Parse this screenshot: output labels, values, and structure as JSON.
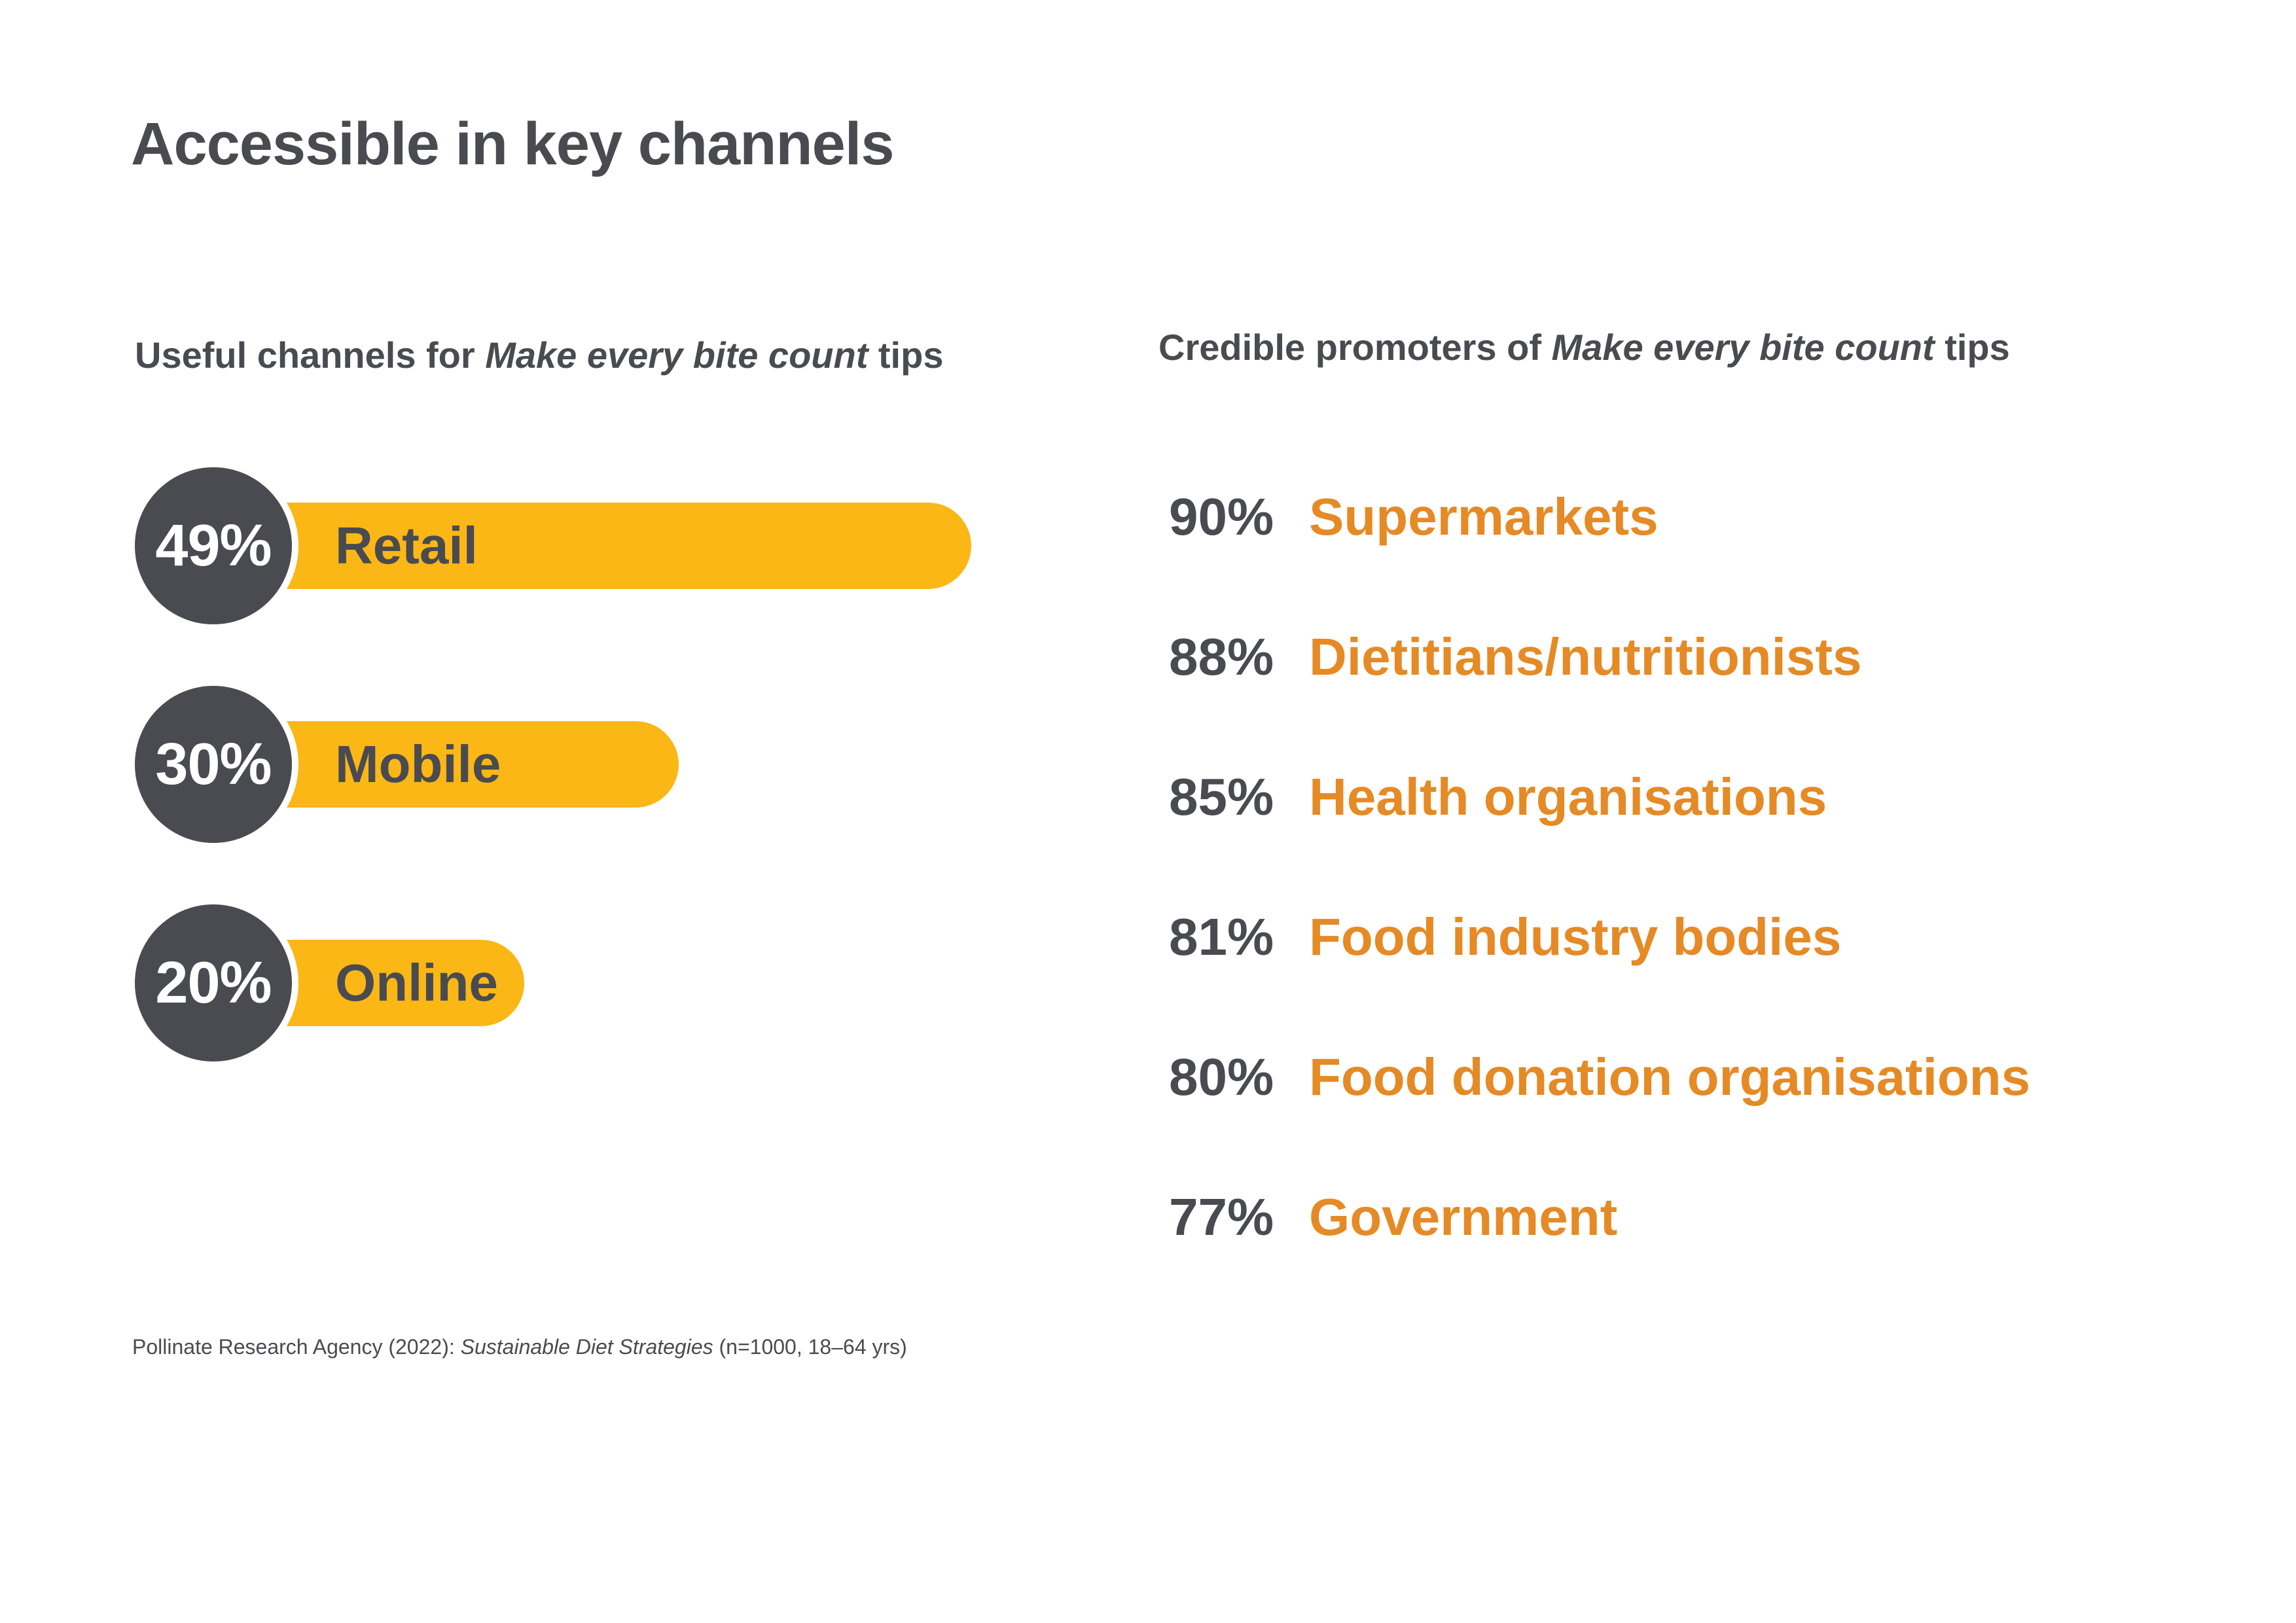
{
  "title": "Accessible in key channels",
  "left_heading": {
    "before": "Useful channels for ",
    "italic": "Make every bite count",
    "after": " tips"
  },
  "right_heading": {
    "before": "Credible promoters of ",
    "italic": "Make every bite count",
    "after": " tips"
  },
  "colors": {
    "bar": "#fbb716",
    "bubble": "#4a4b50",
    "promoter_name": "#e58a25",
    "text": "#4a4b50"
  },
  "chart_data": [
    {
      "type": "bar",
      "orientation": "horizontal",
      "categories": [
        "Retail",
        "Mobile",
        "Online"
      ],
      "values": [
        49,
        30,
        20
      ],
      "value_labels": [
        "49%",
        "30%",
        "20%"
      ],
      "unit": "%"
    },
    {
      "type": "table",
      "categories": [
        "Supermarkets",
        "Dietitians/nutritionists",
        "Health organisations",
        "Food industry bodies",
        "Food donation organisations",
        "Government"
      ],
      "values": [
        90,
        88,
        85,
        81,
        80,
        77
      ],
      "value_labels": [
        "90%",
        "88%",
        "85%",
        "81%",
        "80%",
        "77%"
      ],
      "unit": "%"
    }
  ],
  "source": {
    "before": "Pollinate Research Agency (2022): ",
    "italic": "Sustainable Diet Strategies",
    "after": " (n=1000, 18–64 yrs)"
  }
}
